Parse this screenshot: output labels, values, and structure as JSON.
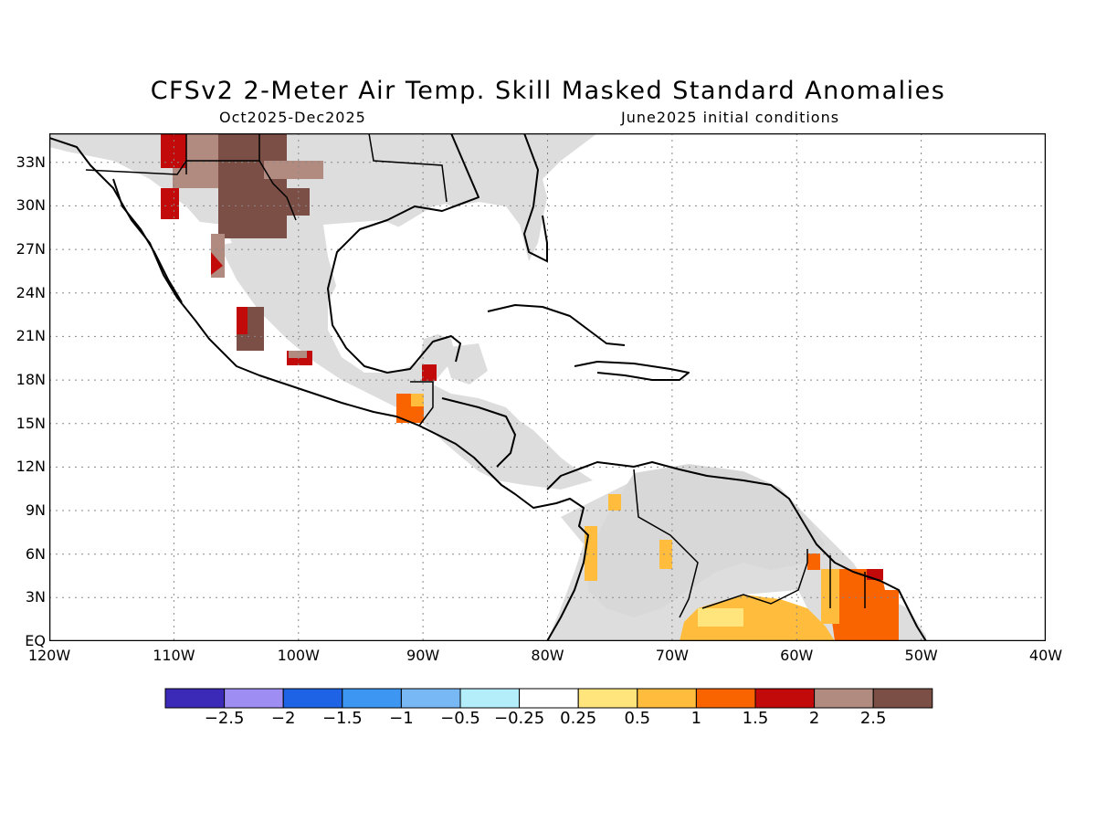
{
  "title": "CFSv2 2-Meter Air Temp. Skill Masked Standard Anomalies",
  "period": "Oct2025-Dec2025",
  "initial_conditions": "June2025 initial conditions",
  "map": {
    "lon_range": [
      -120,
      -40
    ],
    "lat_range": [
      0,
      35
    ],
    "lat_ticks": [
      "EQ",
      "3N",
      "6N",
      "9N",
      "12N",
      "15N",
      "18N",
      "21N",
      "24N",
      "27N",
      "30N",
      "33N"
    ],
    "lon_ticks": [
      "120W",
      "110W",
      "100W",
      "90W",
      "80W",
      "70W",
      "60W",
      "50W",
      "40W"
    ],
    "masked_color": "#dddddd",
    "grid": "dotted"
  },
  "legend": {
    "colors": [
      "#3b2ab8",
      "#9e8df2",
      "#1e63e6",
      "#3d96f2",
      "#78b9f5",
      "#b4eefa",
      "#ffffff",
      "#ffe57c",
      "#ffbc3d",
      "#fa6400",
      "#c30a0a",
      "#b28b80",
      "#7b4f45"
    ],
    "labels": [
      "−2.5",
      "−2",
      "−1.5",
      "−1",
      "−0.5",
      "−0.25",
      "0.25",
      "0.5",
      "1",
      "1.5",
      "2",
      "2.5"
    ]
  }
}
